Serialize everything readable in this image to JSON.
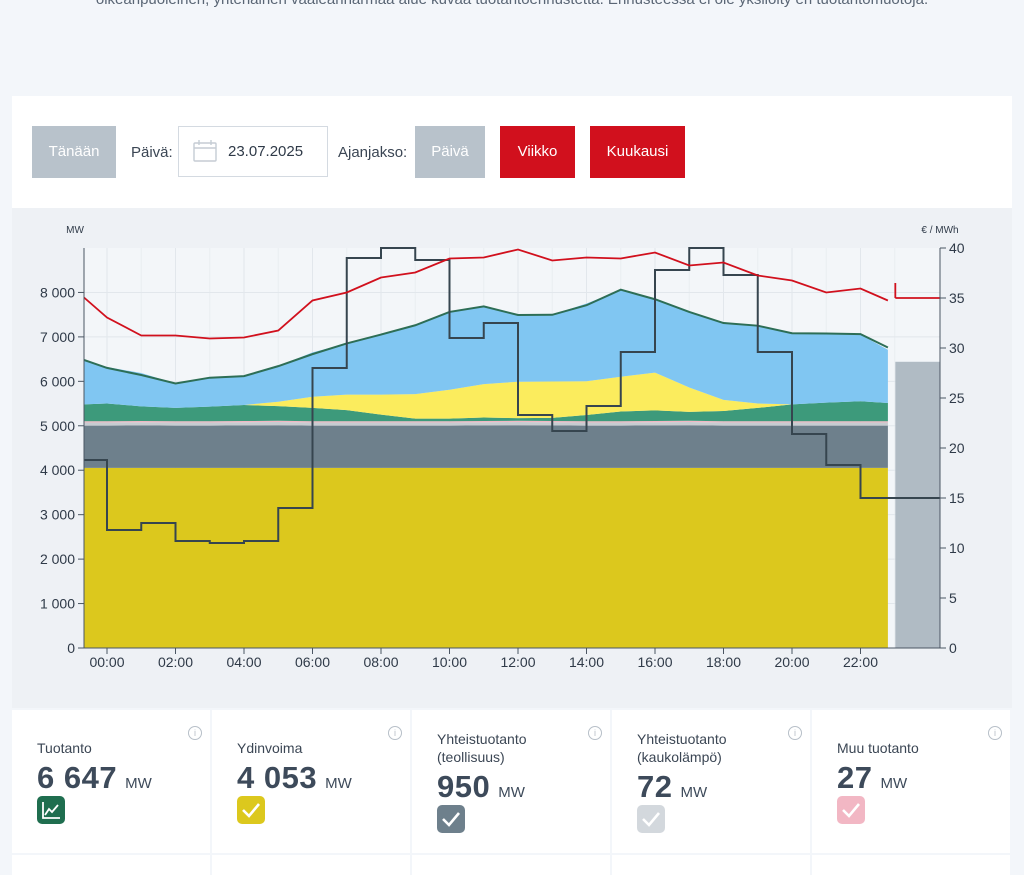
{
  "intro_text": "oikeanpuoleinen, yhtenäinen vaaleanharmaa alue kuvaa tuotantoennustetta. Ennusteessa ei ole yksilöity eri tuotantomuotoja.",
  "controls": {
    "today_label": "Tänään",
    "date_label": "Päivä:",
    "date_value": "23.07.2025",
    "period_label": "Ajanjakso:",
    "period_day": "Päivä",
    "period_week": "Viikko",
    "period_month": "Kuukausi"
  },
  "colors": {
    "accent_red": "#d1101d",
    "nuclear": "#dcc81d",
    "chp_industry": "#6e808c",
    "chp_district": "#c7ccd1",
    "other": "#f2b7c4",
    "hydro": "#3d9a7b",
    "solar": "#fbec5d",
    "wind": "#80c6f2",
    "forecast": "#b0bbc4",
    "price_line": "#d1101d",
    "total_line": "#2d6e56"
  },
  "chart_data": {
    "type": "area",
    "y_left_unit": "MW",
    "y_right_unit": "€ / MWh",
    "ylim_left": [
      0,
      9000
    ],
    "ylim_right": [
      0,
      40
    ],
    "y_left_ticks": [
      "0",
      "1 000",
      "2 000",
      "3 000",
      "4 000",
      "5 000",
      "6 000",
      "7 000",
      "8 000"
    ],
    "y_right_ticks": [
      "0",
      "5",
      "10",
      "15",
      "20",
      "25",
      "30",
      "35",
      "40"
    ],
    "x_ticks": [
      "00:00",
      "02:00",
      "04:00",
      "06:00",
      "08:00",
      "10:00",
      "12:00",
      "14:00",
      "16:00",
      "18:00",
      "20:00",
      "22:00"
    ],
    "x_hours": [
      -1,
      0,
      1,
      2,
      3,
      4,
      5,
      6,
      7,
      8,
      9,
      10,
      11,
      12,
      13,
      14,
      15,
      16,
      17,
      18,
      19,
      20,
      21,
      22,
      22.8
    ],
    "series": [
      {
        "key": "nuclear",
        "values": [
          4053,
          4053,
          4053,
          4053,
          4053,
          4053,
          4053,
          4053,
          4053,
          4053,
          4053,
          4053,
          4053,
          4053,
          4053,
          4053,
          4053,
          4053,
          4053,
          4053,
          4053,
          4053,
          4053,
          4053,
          4053
        ]
      },
      {
        "key": "chp_industry",
        "values": [
          950,
          950,
          955,
          950,
          950,
          955,
          960,
          950,
          950,
          950,
          950,
          950,
          955,
          960,
          955,
          950,
          950,
          955,
          960,
          950,
          950,
          950,
          950,
          950,
          950
        ]
      },
      {
        "key": "chp_district",
        "values": [
          72,
          72,
          72,
          72,
          72,
          72,
          72,
          72,
          72,
          72,
          72,
          72,
          72,
          72,
          72,
          72,
          72,
          72,
          72,
          72,
          72,
          72,
          72,
          72,
          72
        ]
      },
      {
        "key": "other",
        "values": [
          27,
          27,
          27,
          27,
          27,
          27,
          27,
          27,
          27,
          27,
          27,
          27,
          27,
          27,
          27,
          27,
          27,
          27,
          27,
          27,
          27,
          27,
          27,
          27,
          27
        ]
      },
      {
        "key": "hydro",
        "values": [
          380,
          400,
          330,
          300,
          330,
          360,
          330,
          300,
          250,
          150,
          60,
          60,
          80,
          60,
          70,
          140,
          220,
          240,
          200,
          230,
          300,
          380,
          420,
          450,
          410
        ]
      },
      {
        "key": "solar",
        "values": [
          0,
          0,
          0,
          0,
          0,
          0,
          100,
          250,
          350,
          450,
          550,
          650,
          750,
          820,
          820,
          760,
          780,
          850,
          550,
          250,
          100,
          0,
          0,
          0,
          0
        ]
      },
      {
        "key": "wind",
        "values": [
          1000,
          820,
          750,
          550,
          650,
          650,
          800,
          1000,
          1150,
          1350,
          1550,
          1750,
          1750,
          1500,
          1500,
          1750,
          1950,
          1650,
          1700,
          1750,
          1750,
          1600,
          1550,
          1500,
          1200
        ]
      }
    ],
    "total_line_values": [
      6482,
      6302,
      6142,
      5952,
      6082,
      6117,
      6342,
      6612,
      6852,
      7052,
      7262,
      7562,
      7687,
      7492,
      7497,
      7712,
      8062,
      7847,
      7562,
      7312,
      7252,
      7082,
      7077,
      7062,
      6762
    ],
    "price_hours": [
      -1,
      0,
      1,
      2,
      3,
      4,
      5,
      6,
      7,
      8,
      9,
      10,
      11,
      12,
      13,
      14,
      15,
      16,
      17,
      18,
      19,
      20,
      21,
      22,
      22.8
    ],
    "price_values": [
      35.3,
      32.8,
      31.5,
      31.0,
      31.2,
      30.8,
      32.0,
      34.5,
      35.8,
      36.8,
      37.8,
      38.7,
      39.3,
      39.6,
      39.0,
      38.8,
      39.2,
      39.3,
      38.5,
      38.3,
      37.5,
      36.5,
      35.8,
      35.7,
      35.0
    ],
    "price_forecast": [
      35.0,
      35.0
    ],
    "step_hours": [
      -1,
      0,
      1,
      2,
      3,
      4,
      5,
      6,
      7,
      8,
      9,
      10,
      11,
      12,
      13,
      14,
      15,
      16,
      17,
      18,
      19,
      20,
      21,
      22
    ],
    "step_values": [
      18.8,
      11.8,
      12.5,
      10.7,
      10.5,
      10.7,
      14.0,
      28.0,
      39.0,
      40.0,
      38.8,
      31.0,
      32.5,
      23.3,
      21.7,
      24.2,
      29.6,
      37.8,
      40.0,
      37.3,
      29.6,
      21.4,
      18.3,
      15.0
    ],
    "forecast_total": 6440
  },
  "cards": [
    {
      "title": "Tuotanto",
      "value": "6 647",
      "unit": "MW",
      "icon": "chart-line-icon"
    },
    {
      "title": "Ydinvoima",
      "value": "4 053",
      "unit": "MW",
      "icon": "check-icon"
    },
    {
      "title": "Yhteistuotanto (teollisuus)",
      "value": "950",
      "unit": "MW",
      "icon": "check-icon"
    },
    {
      "title": "Yhteistuotanto (kaukolämpö)",
      "value": "72",
      "unit": "MW",
      "icon": "check-icon"
    },
    {
      "title": "Muu tuotanto",
      "value": "27",
      "unit": "MW",
      "icon": "check-icon"
    }
  ],
  "card_info_glyph": "i"
}
